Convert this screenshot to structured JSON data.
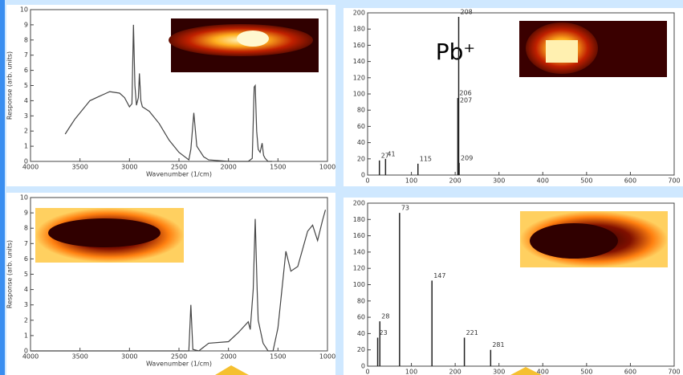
{
  "chart_data": [
    {
      "type": "line",
      "xlabel": "Wavenumber (1/cm)",
      "ylabel": "Response (arb. units)",
      "x": [
        3650,
        3600,
        3550,
        3500,
        3450,
        3400,
        3300,
        3200,
        3100,
        3050,
        3000,
        2975,
        2960,
        2945,
        2930,
        2910,
        2900,
        2885,
        2870,
        2800,
        2700,
        2600,
        2500,
        2400,
        2380,
        2350,
        2320,
        2250,
        2200,
        2000,
        1800,
        1760,
        1740,
        1730,
        1715,
        1700,
        1680,
        1660,
        1645,
        1630,
        1600,
        1560
      ],
      "values": [
        1.8,
        2.3,
        2.8,
        3.2,
        3.6,
        4.0,
        4.3,
        4.6,
        4.5,
        4.2,
        3.6,
        3.8,
        9.0,
        5.0,
        3.7,
        4.2,
        5.8,
        4.0,
        3.6,
        3.3,
        2.5,
        1.4,
        0.6,
        0.1,
        0.8,
        3.2,
        1.0,
        0.3,
        0.1,
        0,
        0,
        0.2,
        4.9,
        5.0,
        2.0,
        0.8,
        0.6,
        1.2,
        0.4,
        0.2,
        0,
        0
      ],
      "color": "#444444",
      "xlim": [
        4000,
        1000
      ],
      "xticks": [
        4000,
        3500,
        3000,
        2500,
        2000,
        1500,
        1000
      ],
      "ylim": [
        0,
        10
      ],
      "yticks": [
        0,
        1,
        2,
        3,
        4,
        5,
        6,
        7,
        8,
        9,
        10
      ]
    },
    {
      "type": "stem",
      "annotation": "Pb⁺",
      "x": [
        27,
        41,
        115,
        206,
        207,
        208,
        209
      ],
      "values": [
        18,
        20,
        14,
        95,
        92,
        195,
        15
      ],
      "color": "#222222",
      "xlim": [
        0,
        700
      ],
      "xticks": [
        0,
        100,
        200,
        300,
        400,
        500,
        600,
        700
      ],
      "ylim": [
        0,
        200
      ],
      "yticks": [
        0,
        20,
        40,
        60,
        80,
        100,
        120,
        140,
        160,
        180,
        200
      ]
    },
    {
      "type": "line",
      "xlabel": "Wavenumber (1/cm)",
      "ylabel": "Response (arb. units)",
      "x": [
        4000,
        3000,
        2500,
        2400,
        2380,
        2360,
        2300,
        2200,
        2000,
        1900,
        1800,
        1780,
        1750,
        1730,
        1710,
        1700,
        1650,
        1600,
        1550,
        1500,
        1420,
        1370,
        1300,
        1200,
        1150,
        1100,
        1050,
        1020
      ],
      "values": [
        0,
        0,
        0,
        0,
        3.0,
        0.1,
        0,
        0.5,
        0.6,
        1.2,
        1.9,
        1.4,
        4.0,
        8.6,
        4.0,
        2.0,
        0.5,
        0,
        0,
        1.5,
        6.5,
        5.2,
        5.5,
        7.8,
        8.2,
        7.2,
        8.5,
        9.2
      ],
      "color": "#444444",
      "xlim": [
        4000,
        1000
      ],
      "xticks": [
        4000,
        3500,
        3000,
        2500,
        2000,
        1500,
        1000
      ],
      "ylim": [
        0,
        10
      ],
      "yticks": [
        0,
        1,
        2,
        3,
        4,
        5,
        6,
        7,
        8,
        9,
        10
      ]
    },
    {
      "type": "stem",
      "x": [
        23,
        28,
        73,
        147,
        221,
        281
      ],
      "values": [
        35,
        55,
        188,
        105,
        35,
        20
      ],
      "color": "#222222",
      "xlim": [
        0,
        700
      ],
      "xticks": [
        0,
        100,
        200,
        300,
        400,
        500,
        600,
        700
      ],
      "ylim": [
        0,
        200
      ],
      "yticks": [
        0,
        20,
        40,
        60,
        80,
        100,
        120,
        140,
        160,
        180,
        200
      ]
    }
  ]
}
